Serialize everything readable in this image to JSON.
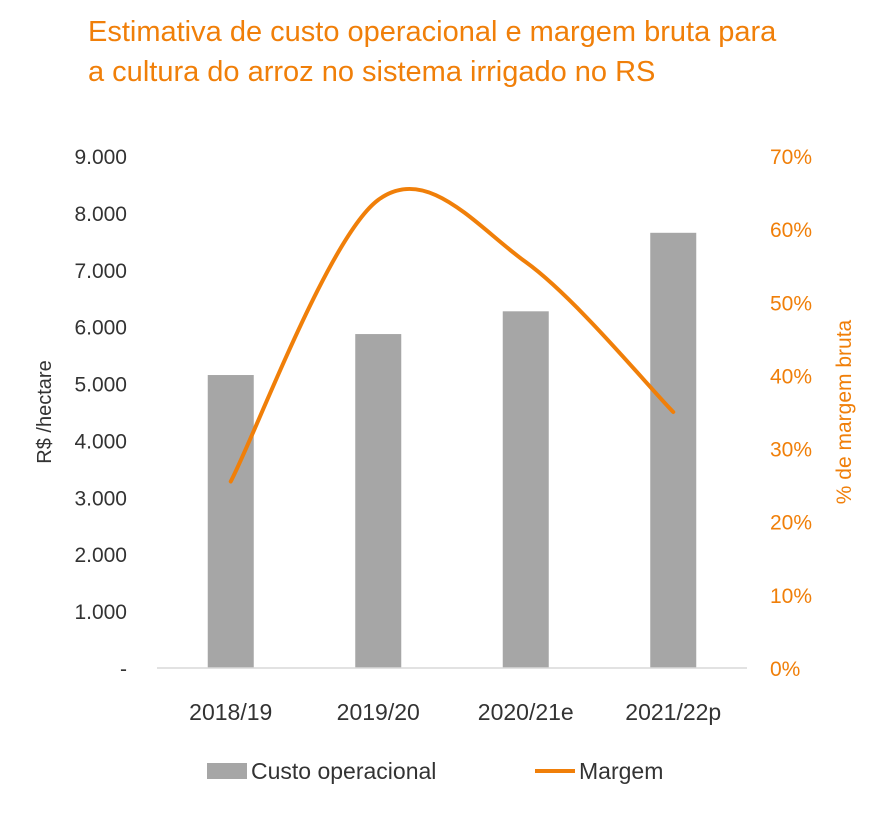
{
  "chart_data": {
    "type": "bar",
    "title_lines": [
      "Estimativa de custo operacional e margem bruta para",
      "a cultura do arroz no sistema irrigado no RS"
    ],
    "categories": [
      "2018/19",
      "2019/20",
      "2020/21e",
      "2021/22p"
    ],
    "series": [
      {
        "name": "Custo operacional",
        "type": "bar",
        "axis": "left",
        "values": [
          5150,
          5870,
          6270,
          7650
        ]
      },
      {
        "name": "Margem",
        "type": "line",
        "axis": "right",
        "values": [
          25.5,
          64.0,
          55.5,
          35.0
        ]
      }
    ],
    "ylabel": "R$ /hectare",
    "ylim": [
      0,
      9000
    ],
    "yticks": [
      0,
      1000,
      2000,
      3000,
      4000,
      5000,
      6000,
      7000,
      8000,
      9000
    ],
    "ytick_labels": [
      "-",
      "1.000",
      "2.000",
      "3.000",
      "4.000",
      "5.000",
      "6.000",
      "7.000",
      "8.000",
      "9.000"
    ],
    "y2label": "% de margem bruta",
    "y2lim": [
      0,
      70
    ],
    "y2ticks": [
      0,
      10,
      20,
      30,
      40,
      50,
      60,
      70
    ],
    "y2tick_labels": [
      "0%",
      "10%",
      "20%",
      "30%",
      "40%",
      "50%",
      "60%",
      "70%"
    ],
    "legend_position": "bottom",
    "colors": {
      "bar": "#a6a6a6",
      "line": "#f07f09",
      "title": "#f07f09",
      "axis_line": "#d9d9d9"
    }
  }
}
